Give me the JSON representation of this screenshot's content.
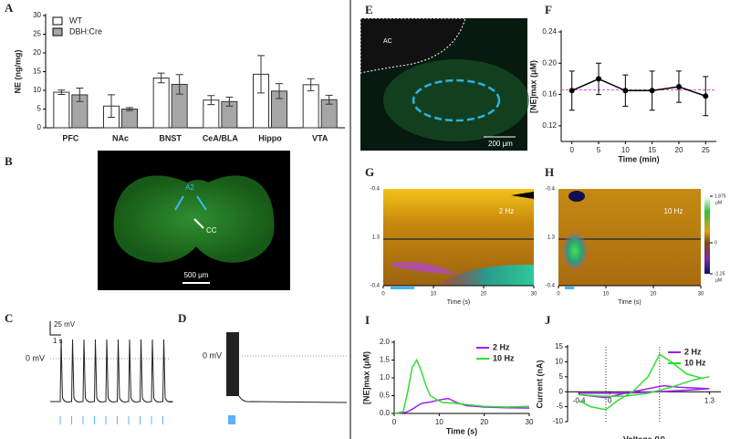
{
  "chart_data": [
    {
      "type": "bar",
      "letter": "A",
      "ylabel": "NE (ng/mg)",
      "categories": [
        "PFC",
        "NAc",
        "BNST",
        "CeA/BLA",
        "Hippo",
        "VTA"
      ],
      "series": [
        {
          "name": "WT",
          "color": "#ffffff",
          "values": [
            9.5,
            5.8,
            13.3,
            7.4,
            14.3,
            11.5
          ],
          "errors": [
            0.6,
            3.0,
            1.3,
            1.2,
            5.0,
            1.6
          ]
        },
        {
          "name": "DBH:Cre",
          "color": "#a6a6a6",
          "values": [
            8.8,
            5.0,
            11.6,
            7.0,
            9.8,
            7.5
          ],
          "errors": [
            1.8,
            0.4,
            2.6,
            1.2,
            2.0,
            1.2
          ]
        }
      ],
      "ylim": [
        0,
        30
      ],
      "yticks": [
        0,
        5,
        10,
        15,
        20,
        25,
        30
      ],
      "legend_position": "upper left"
    },
    {
      "type": "line",
      "letter": "F",
      "ylabel": "[NE]max (μM)",
      "xlabel": "Time (min)",
      "x": [
        0,
        5,
        10,
        15,
        20,
        25
      ],
      "series": [
        {
          "color": "#000000",
          "values": [
            0.165,
            0.18,
            0.165,
            0.165,
            0.17,
            0.158
          ],
          "errors": [
            0.025,
            0.02,
            0.02,
            0.025,
            0.02,
            0.025
          ]
        }
      ],
      "xlim": [
        -2,
        27
      ],
      "xticks": [
        0,
        5,
        10,
        15,
        20,
        25
      ],
      "ylim": [
        0.1,
        0.24
      ],
      "yticks": [
        0.12,
        0.16,
        {
          "value": 0.2,
          "label": "0.20"
        },
        0.24
      ],
      "markers": true,
      "hline": 0.166,
      "hline_color": "#e040e0"
    },
    {
      "type": "colorplot",
      "letter": "G",
      "annotation": "2 Hz",
      "xlabel": "Time (s)",
      "xlim": [
        0,
        30
      ],
      "xticks": [
        0,
        10,
        20,
        30
      ],
      "y_labels": [
        "-0.4",
        "1.3",
        "-0.4"
      ]
    },
    {
      "type": "colorplot",
      "letter": "H",
      "annotation": "10 Hz",
      "xlabel": "Time (s)",
      "xlim": [
        0,
        30
      ],
      "xticks": [
        0,
        10,
        20,
        30
      ],
      "y_labels": [
        "-0.4",
        "1.3",
        "-0.4"
      ],
      "colorbar": {
        "lim": [
          -1.25,
          1.875
        ],
        "ticks": [
          1.875,
          0,
          -1.25
        ],
        "unit": "μM"
      }
    },
    {
      "type": "line",
      "letter": "I",
      "ylabel": "[NE]max (μM)",
      "xlabel": "Time (s)",
      "x": [
        0,
        2,
        3,
        4,
        5,
        6,
        7,
        8,
        10,
        11,
        12,
        14,
        16,
        20,
        25,
        30
      ],
      "series": [
        {
          "name": "2 Hz",
          "color": "#a020f0",
          "values": [
            0,
            0.02,
            0.05,
            0.12,
            0.2,
            0.28,
            0.3,
            0.32,
            0.38,
            0.4,
            0.42,
            0.3,
            0.22,
            0.18,
            0.16,
            0.15
          ]
        },
        {
          "name": "10 Hz",
          "color": "#33dd33",
          "values": [
            0,
            0.05,
            0.6,
            1.3,
            1.5,
            1.2,
            0.8,
            0.5,
            0.35,
            0.3,
            0.3,
            0.28,
            0.25,
            0.2,
            0.18,
            0.2
          ]
        }
      ],
      "xlim": [
        0,
        30
      ],
      "xticks": [
        0,
        10,
        20,
        30
      ],
      "ylim": [
        0,
        2
      ],
      "yticks": [
        {
          "value": 0,
          "label": "0.0"
        },
        0.5,
        {
          "value": 1,
          "label": "1.0"
        },
        1.5,
        {
          "value": 2,
          "label": "2.0"
        }
      ],
      "legend_position": "upper right"
    },
    {
      "type": "line",
      "letter": "J",
      "ylabel": "Current (nA)",
      "xlabel": "Voltage (V)",
      "series": [
        {
          "name": "2 Hz",
          "color": "#a020f0",
          "x": [
            -0.4,
            -0.05,
            0.2,
            0.5,
            0.7,
            0.9,
            1.3,
            1.0,
            0.6,
            0.2,
            -0.4
          ],
          "values": [
            -1,
            -2,
            -0.5,
            1,
            2,
            1.5,
            1,
            0.5,
            0,
            -0.5,
            -0.5
          ]
        },
        {
          "name": "10 Hz",
          "color": "#33dd33",
          "x": [
            -0.4,
            -0.25,
            -0.05,
            0.1,
            0.3,
            0.5,
            0.65,
            0.8,
            1.0,
            1.2,
            1.3,
            1.1,
            0.8,
            0.5,
            0.2,
            -0.1,
            -0.4
          ],
          "values": [
            -3,
            -5,
            -6,
            -3,
            0,
            5,
            12.5,
            10,
            6,
            4.5,
            5,
            4,
            1.5,
            -0.5,
            -1.5,
            -1.5,
            -1
          ]
        }
      ],
      "xlim": [
        -0.55,
        1.45
      ],
      "xticks": [
        -0.4,
        0,
        1.3
      ],
      "ylim": [
        -10,
        15
      ],
      "yticks": [
        -10,
        -5,
        0,
        5,
        10,
        15
      ],
      "xaxis_at_zero": true,
      "vlines": [
        -0.05,
        0.65
      ],
      "legend_position": "upper right"
    }
  ],
  "images": {
    "B": {
      "letter": "B",
      "labels": [
        "A2",
        "CC"
      ],
      "scale": "500 μm"
    },
    "C": {
      "letter": "C",
      "scale_v": "25 mV",
      "scale_t": "1 s",
      "zero": "0 mV"
    },
    "D": {
      "letter": "D",
      "zero": "0 mV"
    },
    "E": {
      "letter": "E",
      "region": "AC",
      "scale": "200 μm"
    }
  }
}
